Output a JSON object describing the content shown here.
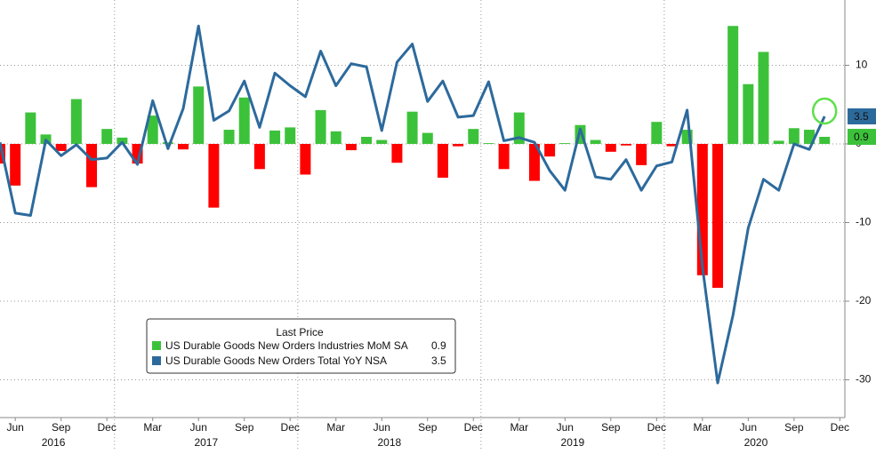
{
  "chart_data": {
    "type": "combo",
    "categories": [
      null,
      "Jun",
      null,
      null,
      "Sep",
      null,
      null,
      "Dec",
      null,
      null,
      "Mar",
      null,
      null,
      "Jun",
      null,
      null,
      "Sep",
      null,
      null,
      "Dec",
      null,
      null,
      "Mar",
      null,
      null,
      "Jun",
      null,
      null,
      "Sep",
      null,
      null,
      "Dec",
      null,
      null,
      "Mar",
      null,
      null,
      "Jun",
      null,
      null,
      "Sep",
      null,
      null,
      "Dec",
      null,
      null,
      "Mar",
      null,
      null,
      "Jun",
      null,
      null,
      "Sep",
      null,
      null,
      "Dec"
    ],
    "years": [
      "2016",
      "2017",
      "2018",
      "2019",
      "2020"
    ],
    "series": [
      {
        "name": "US Durable Goods New Orders Industries MoM SA",
        "type": "bar",
        "color": "#3cc23a",
        "negative_color": "#ff0000",
        "values": [
          -2.5,
          -5.3,
          4.0,
          1.2,
          -0.9,
          5.7,
          -5.5,
          1.9,
          0.8,
          -2.5,
          3.6,
          0.2,
          -0.7,
          7.3,
          -8.1,
          1.8,
          5.9,
          -3.2,
          1.7,
          2.1,
          -3.9,
          4.3,
          1.6,
          -0.8,
          0.9,
          0.5,
          -2.4,
          4.1,
          1.4,
          -4.3,
          -0.3,
          1.9,
          0.1,
          -3.2,
          4.0,
          -4.7,
          -1.6,
          0.1,
          2.4,
          0.5,
          -1.0,
          -0.2,
          -2.7,
          2.8,
          -0.3,
          1.8,
          -16.7,
          -18.3,
          15.0,
          7.6,
          11.7,
          0.4,
          2.0,
          1.8,
          0.9,
          null
        ]
      },
      {
        "name": "US Durable Goods New Orders Total YoY NSA",
        "type": "line",
        "color": "#2d6a9c",
        "values": [
          0.2,
          -8.8,
          -9.1,
          0.5,
          -1.5,
          -0.1,
          -2.0,
          -1.8,
          0.2,
          -2.6,
          5.5,
          -0.6,
          4.5,
          15.0,
          3.0,
          4.2,
          8.0,
          2.1,
          9.0,
          7.4,
          6.0,
          11.8,
          7.4,
          10.2,
          9.8,
          1.7,
          10.4,
          12.7,
          5.4,
          8.0,
          3.4,
          3.6,
          7.9,
          0.4,
          0.8,
          0.2,
          -3.4,
          -5.9,
          1.9,
          -4.2,
          -4.5,
          -2.0,
          -5.9,
          -2.8,
          -2.3,
          4.3,
          -15.6,
          -30.4,
          -21.8,
          -10.7,
          -4.5,
          -5.9,
          0.0,
          -0.7,
          3.5,
          null
        ]
      }
    ],
    "legend_title": "Last Price",
    "ylim": [
      -34.8,
      18.3
    ],
    "yticks": [
      10,
      0,
      -10,
      -20,
      -30
    ],
    "y_axis_side": "right",
    "grid": true
  }
}
